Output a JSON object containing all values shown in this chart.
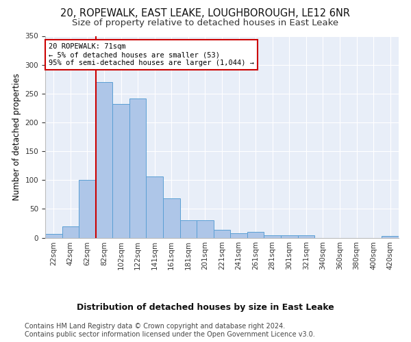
{
  "title1": "20, ROPEWALK, EAST LEAKE, LOUGHBOROUGH, LE12 6NR",
  "title2": "Size of property relative to detached houses in East Leake",
  "xlabel": "Distribution of detached houses by size in East Leake",
  "ylabel": "Number of detached properties",
  "bar_labels": [
    "22sqm",
    "42sqm",
    "62sqm",
    "82sqm",
    "102sqm",
    "122sqm",
    "141sqm",
    "161sqm",
    "181sqm",
    "201sqm",
    "221sqm",
    "241sqm",
    "261sqm",
    "281sqm",
    "301sqm",
    "321sqm",
    "340sqm",
    "360sqm",
    "380sqm",
    "400sqm",
    "420sqm"
  ],
  "bar_values": [
    7,
    20,
    100,
    270,
    232,
    242,
    106,
    68,
    30,
    30,
    14,
    8,
    10,
    4,
    4,
    4,
    0,
    0,
    0,
    0,
    3
  ],
  "bar_color": "#aec6e8",
  "bar_edge_color": "#5a9fd4",
  "vline_color": "#cc0000",
  "annotation_text": "20 ROPEWALK: 71sqm\n← 5% of detached houses are smaller (53)\n95% of semi-detached houses are larger (1,044) →",
  "annotation_box_color": "#cc0000",
  "ylim": [
    0,
    350
  ],
  "yticks": [
    0,
    50,
    100,
    150,
    200,
    250,
    300,
    350
  ],
  "background_color": "#e8eef8",
  "grid_color": "#ffffff",
  "footer1": "Contains HM Land Registry data © Crown copyright and database right 2024.",
  "footer2": "Contains public sector information licensed under the Open Government Licence v3.0.",
  "title1_fontsize": 10.5,
  "title2_fontsize": 9.5,
  "xlabel_fontsize": 9,
  "ylabel_fontsize": 8.5,
  "footer_fontsize": 7,
  "tick_fontsize": 7.5
}
